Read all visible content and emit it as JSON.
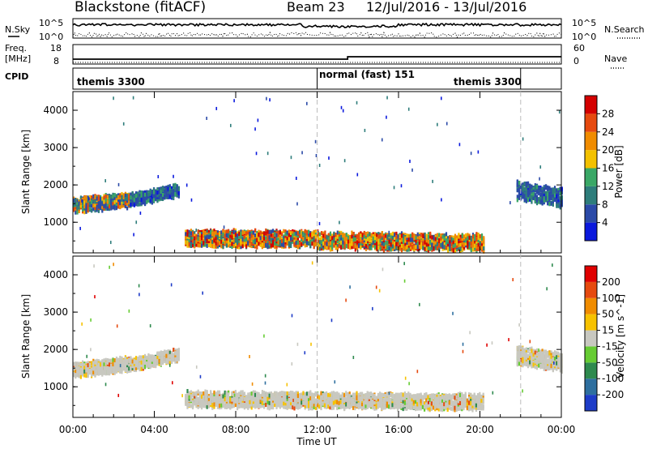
{
  "header": {
    "station": "Blackstone (fitACF)",
    "beam": "Beam 23",
    "dates": "12/Jul/2016 - 13/Jul/2016"
  },
  "left_labels": {
    "nsky": "N.Sky",
    "freq": "Freq.",
    "mhz": "[MHz]",
    "cpid": "CPID"
  },
  "right_labels": {
    "nsearch": "N.Search",
    "nave": "Nave"
  },
  "top_axis": {
    "nsky_ticks": [
      "10^5",
      "10^0"
    ],
    "nsearch_ticks": [
      "10^5",
      "10^0"
    ],
    "freq_ticks": [
      "18",
      "8"
    ],
    "nave_ticks": [
      "60",
      "0"
    ]
  },
  "cpid_segments": [
    {
      "label": "themis 3300",
      "start_h": 0,
      "end_h": 12
    },
    {
      "label": "normal (fast) 151",
      "start_h": 12,
      "end_h": 22
    },
    {
      "label": "themis 3300",
      "start_h": 22,
      "end_h": 24
    }
  ],
  "chart_data": [
    {
      "type": "heatmap",
      "ylabel": "Slant Range [km]",
      "xlabel": "Time UT",
      "xlim": [
        0,
        24
      ],
      "ylim": [
        180,
        4500
      ],
      "x_ticks": [
        "00:00",
        "04:00",
        "08:00",
        "12:00",
        "16:00",
        "20:00",
        "00:00"
      ],
      "y_ticks": [
        1000,
        2000,
        3000,
        4000
      ],
      "colorbar": {
        "label": "Power [dB]",
        "ticks": [
          4,
          8,
          12,
          16,
          20,
          24,
          28
        ],
        "colors": [
          "#0b19dd",
          "#2b4aa8",
          "#2e7d7b",
          "#3aa866",
          "#f3c100",
          "#f08c00",
          "#e64a0f",
          "#d40000"
        ]
      },
      "bands": [
        {
          "start_h": 0.0,
          "end_h": 2.8,
          "center_km": [
            1500,
            1650
          ],
          "width_km": 350,
          "dominant": "mid"
        },
        {
          "start_h": 2.8,
          "end_h": 5.2,
          "center_km": [
            1650,
            1900
          ],
          "width_km": 300,
          "dominant": "blue"
        },
        {
          "start_h": 5.5,
          "end_h": 12.0,
          "center_km": [
            620,
            600
          ],
          "width_km": 400,
          "dominant": "strong"
        },
        {
          "start_h": 12.0,
          "end_h": 20.2,
          "center_km": [
            560,
            500
          ],
          "width_km": 400,
          "dominant": "strong"
        },
        {
          "start_h": 21.8,
          "end_h": 24.0,
          "center_km": [
            1900,
            1700
          ],
          "width_km": 450,
          "dominant": "blue"
        }
      ]
    },
    {
      "type": "heatmap",
      "ylabel": "Slant Range [km]",
      "xlabel": "Time UT",
      "xlim": [
        0,
        24
      ],
      "ylim": [
        180,
        4500
      ],
      "x_ticks": [
        "00:00",
        "04:00",
        "08:00",
        "12:00",
        "16:00",
        "20:00",
        "00:00"
      ],
      "y_ticks": [
        1000,
        2000,
        3000,
        4000
      ],
      "colorbar": {
        "label": "Velocity [m s^-1]",
        "ticks": [
          "200",
          "100",
          "50",
          "15",
          "-15",
          "-50",
          "-100",
          "-200"
        ],
        "colors": [
          "#1e3cc8",
          "#2e6f9f",
          "#2e8a4e",
          "#66cc33",
          "#c8c8c0",
          "#f7c200",
          "#f08c00",
          "#e64a0f",
          "#e00000"
        ]
      },
      "bands": [
        {
          "start_h": 0.0,
          "end_h": 2.8,
          "center_km": [
            1500,
            1650
          ],
          "width_km": 350,
          "dominant": "ground"
        },
        {
          "start_h": 2.8,
          "end_h": 5.2,
          "center_km": [
            1650,
            1900
          ],
          "width_km": 300,
          "dominant": "ground"
        },
        {
          "start_h": 5.5,
          "end_h": 20.2,
          "center_km": [
            720,
            640
          ],
          "width_km": 380,
          "dominant": "ground"
        },
        {
          "start_h": 21.8,
          "end_h": 24.0,
          "center_km": [
            1900,
            1700
          ],
          "width_km": 450,
          "dominant": "ground"
        }
      ]
    }
  ]
}
